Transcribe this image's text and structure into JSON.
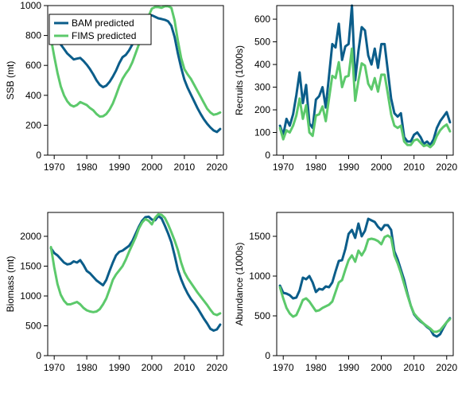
{
  "colors": {
    "bam": "#0b5d8a",
    "fims": "#5cc96b"
  },
  "legend": {
    "placement": "top-left",
    "entries": [
      "BAM predicted",
      "FIMS predicted"
    ]
  },
  "chart_data": [
    {
      "type": "line",
      "ylabel": "SSB (mt)",
      "xlim": [
        1968,
        2022
      ],
      "ylim": [
        0,
        1000
      ],
      "xticks": [
        1970,
        1980,
        1990,
        2000,
        2010,
        2020
      ],
      "yticks": [
        0,
        200,
        400,
        600,
        800,
        1000
      ],
      "x": [
        1969,
        1970,
        1971,
        1972,
        1973,
        1974,
        1975,
        1976,
        1977,
        1978,
        1979,
        1980,
        1981,
        1982,
        1983,
        1984,
        1985,
        1986,
        1987,
        1988,
        1989,
        1990,
        1991,
        1992,
        1993,
        1994,
        1995,
        1996,
        1997,
        1998,
        1999,
        2000,
        2001,
        2002,
        2003,
        2004,
        2005,
        2006,
        2007,
        2008,
        2009,
        2010,
        2011,
        2012,
        2013,
        2014,
        2015,
        2016,
        2017,
        2018,
        2019,
        2020,
        2021
      ],
      "series": [
        {
          "name": "BAM predicted",
          "values": [
            800,
            790,
            770,
            740,
            710,
            680,
            660,
            640,
            645,
            650,
            630,
            605,
            575,
            540,
            500,
            470,
            455,
            465,
            490,
            525,
            565,
            615,
            655,
            670,
            700,
            740,
            790,
            840,
            880,
            920,
            935,
            935,
            925,
            915,
            910,
            905,
            895,
            865,
            790,
            680,
            585,
            505,
            450,
            405,
            360,
            315,
            275,
            240,
            210,
            185,
            165,
            155,
            175
          ]
        },
        {
          "name": "FIMS predicted",
          "values": [
            780,
            660,
            550,
            460,
            400,
            360,
            335,
            325,
            335,
            355,
            345,
            335,
            315,
            300,
            275,
            258,
            260,
            275,
            305,
            345,
            400,
            460,
            510,
            545,
            575,
            620,
            680,
            740,
            800,
            870,
            930,
            980,
            990,
            990,
            985,
            995,
            995,
            985,
            900,
            765,
            650,
            575,
            540,
            510,
            470,
            430,
            390,
            350,
            310,
            285,
            270,
            275,
            285
          ]
        }
      ]
    },
    {
      "type": "line",
      "ylabel": "Recruits (1000s)",
      "xlim": [
        1968,
        2022
      ],
      "ylim": [
        0,
        660
      ],
      "xticks": [
        1970,
        1980,
        1990,
        2000,
        2010,
        2020
      ],
      "yticks": [
        0,
        100,
        200,
        300,
        400,
        500,
        600
      ],
      "x": [
        1969,
        1970,
        1971,
        1972,
        1973,
        1974,
        1975,
        1976,
        1977,
        1978,
        1979,
        1980,
        1981,
        1982,
        1983,
        1984,
        1985,
        1986,
        1987,
        1988,
        1989,
        1990,
        1991,
        1992,
        1993,
        1994,
        1995,
        1996,
        1997,
        1998,
        1999,
        2000,
        2001,
        2002,
        2003,
        2004,
        2005,
        2006,
        2007,
        2008,
        2009,
        2010,
        2011,
        2012,
        2013,
        2014,
        2015,
        2016,
        2017,
        2018,
        2019,
        2020,
        2021
      ],
      "series": [
        {
          "name": "BAM predicted",
          "values": [
            130,
            90,
            160,
            130,
            180,
            265,
            365,
            230,
            310,
            140,
            120,
            245,
            260,
            300,
            210,
            350,
            490,
            475,
            580,
            420,
            480,
            490,
            660,
            330,
            460,
            565,
            550,
            440,
            400,
            470,
            385,
            490,
            490,
            370,
            250,
            185,
            170,
            185,
            80,
            60,
            60,
            90,
            100,
            80,
            50,
            60,
            45,
            70,
            120,
            150,
            170,
            190,
            145
          ]
        },
        {
          "name": "FIMS predicted",
          "values": [
            120,
            70,
            110,
            100,
            130,
            175,
            250,
            160,
            220,
            100,
            85,
            175,
            180,
            215,
            150,
            250,
            350,
            340,
            410,
            300,
            345,
            350,
            470,
            240,
            330,
            405,
            395,
            315,
            290,
            340,
            280,
            355,
            355,
            270,
            180,
            130,
            120,
            130,
            60,
            45,
            45,
            65,
            70,
            55,
            40,
            45,
            35,
            50,
            85,
            110,
            125,
            135,
            105
          ]
        }
      ]
    },
    {
      "type": "line",
      "ylabel": "Biomass (mt)",
      "xlim": [
        1968,
        2022
      ],
      "ylim": [
        0,
        2400
      ],
      "xticks": [
        1970,
        1980,
        1990,
        2000,
        2010,
        2020
      ],
      "yticks": [
        0,
        500,
        1000,
        1500,
        2000
      ],
      "x": [
        1969,
        1970,
        1971,
        1972,
        1973,
        1974,
        1975,
        1976,
        1977,
        1978,
        1979,
        1980,
        1981,
        1982,
        1983,
        1984,
        1985,
        1986,
        1987,
        1988,
        1989,
        1990,
        1991,
        1992,
        1993,
        1994,
        1995,
        1996,
        1997,
        1998,
        1999,
        2000,
        2001,
        2002,
        2003,
        2004,
        2005,
        2006,
        2007,
        2008,
        2009,
        2010,
        2011,
        2012,
        2013,
        2014,
        2015,
        2016,
        2017,
        2018,
        2019,
        2020,
        2021
      ],
      "series": [
        {
          "name": "BAM predicted",
          "values": [
            1800,
            1720,
            1680,
            1620,
            1560,
            1530,
            1540,
            1580,
            1560,
            1600,
            1520,
            1420,
            1380,
            1320,
            1260,
            1220,
            1180,
            1270,
            1420,
            1560,
            1680,
            1740,
            1760,
            1800,
            1840,
            1920,
            2040,
            2160,
            2260,
            2320,
            2330,
            2280,
            2270,
            2340,
            2300,
            2180,
            2050,
            1900,
            1680,
            1440,
            1280,
            1150,
            1040,
            950,
            880,
            800,
            710,
            620,
            540,
            450,
            420,
            440,
            520
          ]
        },
        {
          "name": "FIMS predicted",
          "values": [
            1820,
            1480,
            1200,
            1020,
            920,
            860,
            860,
            880,
            900,
            860,
            800,
            760,
            740,
            730,
            740,
            780,
            860,
            960,
            1110,
            1270,
            1360,
            1430,
            1500,
            1610,
            1740,
            1860,
            1980,
            2130,
            2230,
            2290,
            2260,
            2200,
            2310,
            2370,
            2360,
            2310,
            2200,
            2070,
            1930,
            1770,
            1560,
            1400,
            1300,
            1220,
            1140,
            1060,
            990,
            920,
            850,
            770,
            700,
            680,
            710
          ]
        }
      ]
    },
    {
      "type": "line",
      "ylabel": "Abundance (1000s)",
      "xlim": [
        1968,
        2022
      ],
      "ylim": [
        0,
        1800
      ],
      "xticks": [
        1970,
        1980,
        1990,
        2000,
        2010,
        2020
      ],
      "yticks": [
        0,
        500,
        1000,
        1500
      ],
      "x": [
        1969,
        1970,
        1971,
        1972,
        1973,
        1974,
        1975,
        1976,
        1977,
        1978,
        1979,
        1980,
        1981,
        1982,
        1983,
        1984,
        1985,
        1986,
        1987,
        1988,
        1989,
        1990,
        1991,
        1992,
        1993,
        1994,
        1995,
        1996,
        1997,
        1998,
        1999,
        2000,
        2001,
        2002,
        2003,
        2004,
        2005,
        2006,
        2007,
        2008,
        2009,
        2010,
        2011,
        2012,
        2013,
        2014,
        2015,
        2016,
        2017,
        2018,
        2019,
        2020,
        2021
      ],
      "series": [
        {
          "name": "BAM predicted",
          "values": [
            880,
            790,
            780,
            760,
            720,
            730,
            820,
            980,
            960,
            1000,
            920,
            800,
            840,
            830,
            870,
            860,
            920,
            1060,
            1190,
            1200,
            1340,
            1530,
            1580,
            1480,
            1660,
            1500,
            1570,
            1720,
            1700,
            1680,
            1620,
            1580,
            1640,
            1640,
            1580,
            1310,
            1210,
            1080,
            950,
            780,
            630,
            520,
            470,
            430,
            400,
            360,
            330,
            260,
            240,
            270,
            350,
            420,
            470
          ]
        },
        {
          "name": "FIMS predicted",
          "values": [
            860,
            720,
            600,
            530,
            490,
            510,
            600,
            700,
            720,
            680,
            620,
            560,
            570,
            600,
            620,
            640,
            680,
            800,
            920,
            950,
            1080,
            1200,
            1260,
            1180,
            1320,
            1260,
            1330,
            1460,
            1470,
            1460,
            1440,
            1400,
            1490,
            1510,
            1480,
            1260,
            1160,
            1040,
            900,
            760,
            630,
            530,
            480,
            440,
            400,
            370,
            340,
            300,
            300,
            320,
            370,
            420,
            460
          ]
        }
      ]
    }
  ]
}
